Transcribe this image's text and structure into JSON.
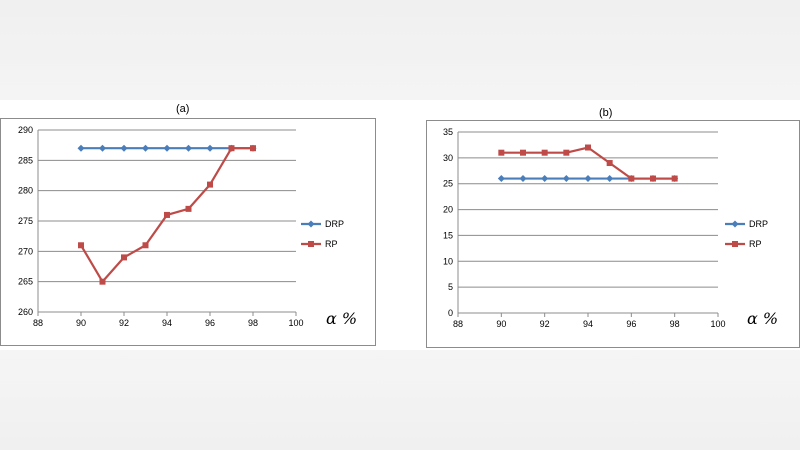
{
  "colors": {
    "DRP": "#4a7ebb",
    "RP": "#be4b48",
    "grid": "#8c8c8c",
    "axis": "#8c8c8c"
  },
  "chart_data": [
    {
      "id": "a",
      "type": "line",
      "title": "(a)",
      "xlabel": "α %",
      "ylabel": "",
      "xlim": [
        88,
        100
      ],
      "ylim": [
        260,
        290
      ],
      "xticks": [
        88,
        90,
        92,
        94,
        96,
        98,
        100
      ],
      "yticks": [
        260,
        265,
        270,
        275,
        280,
        285,
        290
      ],
      "grid": "horizontal",
      "legend_position": "right",
      "series": [
        {
          "name": "DRP",
          "marker": "diamond",
          "x": [
            90,
            91,
            92,
            93,
            94,
            95,
            96,
            97,
            98
          ],
          "y": [
            287,
            287,
            287,
            287,
            287,
            287,
            287,
            287,
            287
          ]
        },
        {
          "name": "RP",
          "marker": "square",
          "x": [
            90,
            91,
            92,
            93,
            94,
            95,
            96,
            97,
            98
          ],
          "y": [
            271,
            265,
            269,
            271,
            276,
            277,
            281,
            287,
            287
          ]
        }
      ]
    },
    {
      "id": "b",
      "type": "line",
      "title": "(b)",
      "xlabel": "α %",
      "ylabel": "",
      "xlim": [
        88,
        100
      ],
      "ylim": [
        0,
        35
      ],
      "xticks": [
        88,
        90,
        92,
        94,
        96,
        98,
        100
      ],
      "yticks": [
        0,
        5,
        10,
        15,
        20,
        25,
        30,
        35
      ],
      "grid": "horizontal",
      "legend_position": "right",
      "series": [
        {
          "name": "DRP",
          "marker": "diamond",
          "x": [
            90,
            91,
            92,
            93,
            94,
            95,
            96,
            97,
            98
          ],
          "y": [
            26,
            26,
            26,
            26,
            26,
            26,
            26,
            26,
            26
          ]
        },
        {
          "name": "RP",
          "marker": "square",
          "x": [
            90,
            91,
            92,
            93,
            94,
            95,
            96,
            97,
            98
          ],
          "y": [
            31,
            31,
            31,
            31,
            32,
            29,
            26,
            26,
            26
          ]
        }
      ]
    }
  ]
}
